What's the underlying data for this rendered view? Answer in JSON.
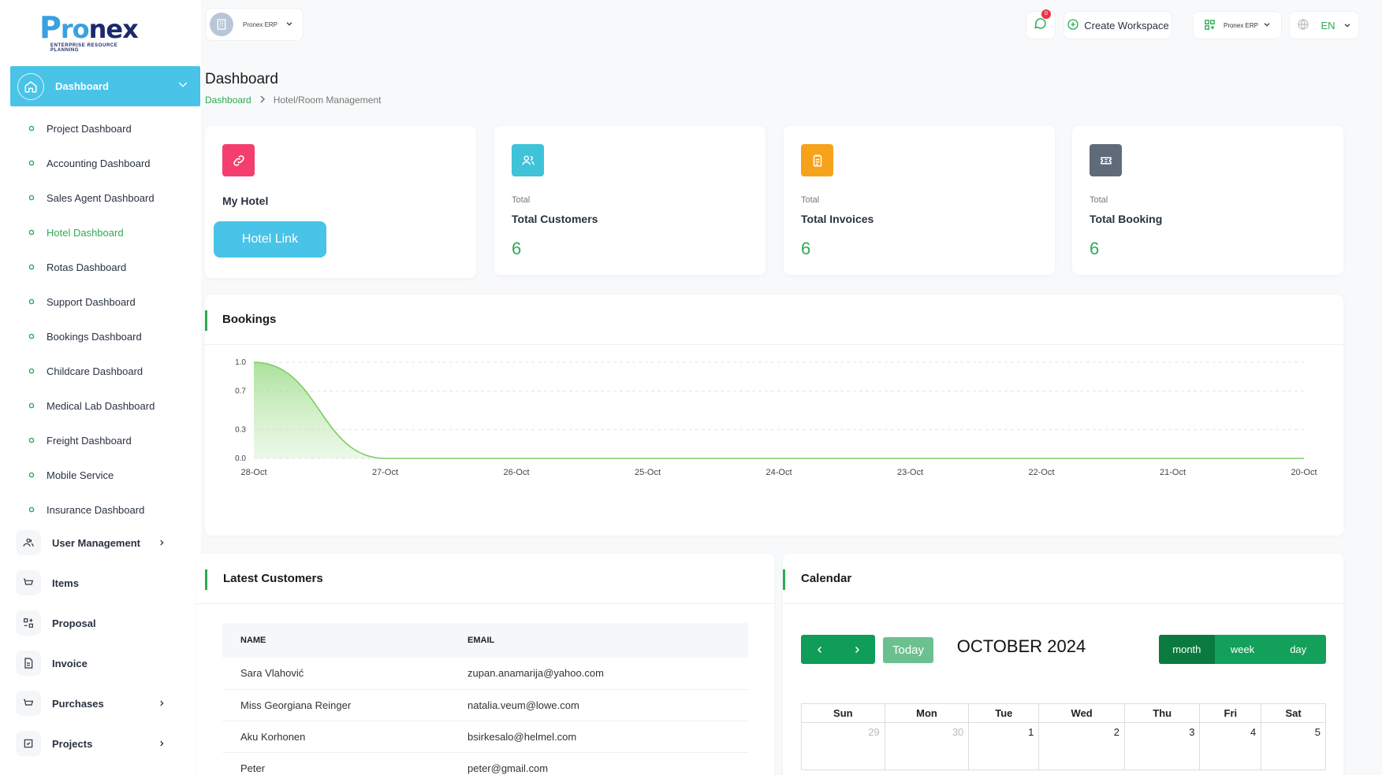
{
  "brand": {
    "logo_text": "Pronex",
    "tagline": "ENTERPRISE RESOURCE PLANNING"
  },
  "header": {
    "workspace_name": "Pronex ERP",
    "notif_count": "0",
    "create_workspace": "Create Workspace",
    "erp_switch": "Pronex ERP",
    "language": "EN"
  },
  "sidebar": {
    "dashboard_label": "Dashboard",
    "sub_items": [
      "Project Dashboard",
      "Accounting Dashboard",
      "Sales Agent Dashboard",
      "Hotel Dashboard",
      "Rotas Dashboard",
      "Support Dashboard",
      "Bookings Dashboard",
      "Childcare Dashboard",
      "Medical Lab Dashboard",
      "Freight Dashboard",
      "Mobile Service",
      "Insurance Dashboard"
    ],
    "active_sub": "Hotel Dashboard",
    "main_items": [
      "User Management",
      "Items",
      "Proposal",
      "Invoice",
      "Purchases",
      "Projects"
    ]
  },
  "page": {
    "title": "Dashboard",
    "breadcrumb_home": "Dashboard",
    "breadcrumb_current": "Hotel/Room Management"
  },
  "cards": {
    "hotel": {
      "title": "My Hotel",
      "button": "Hotel Link"
    },
    "customers": {
      "small": "Total",
      "title": "Total Customers",
      "value": "6"
    },
    "invoices": {
      "small": "Total",
      "title": "Total Invoices",
      "value": "6"
    },
    "booking": {
      "small": "Total",
      "title": "Total Booking",
      "value": "6"
    }
  },
  "colors": {
    "accent": "#49c3e8",
    "green": "#2eaa52",
    "hotel_icon": "#f43f6e",
    "customers_icon": "#3ec3d8",
    "invoices_icon": "#f7a21b",
    "booking_icon": "#5f6b79"
  },
  "bookings": {
    "title": "Bookings"
  },
  "chart_data": {
    "type": "area",
    "x": [
      "28-Oct",
      "27-Oct",
      "26-Oct",
      "25-Oct",
      "24-Oct",
      "23-Oct",
      "22-Oct",
      "21-Oct",
      "20-Oct"
    ],
    "series": [
      {
        "values": [
          1,
          0,
          0,
          0,
          0,
          0,
          0,
          0,
          0
        ]
      }
    ],
    "yticks": [
      "1.0",
      "0.7",
      "0.3",
      "0.0"
    ],
    "ylim": [
      0,
      1
    ],
    "grid": true
  },
  "customers": {
    "title": "Latest Customers",
    "columns": [
      "NAME",
      "EMAIL"
    ],
    "rows": [
      [
        "Sara Vlahović",
        "zupan.anamarija@yahoo.com"
      ],
      [
        "Miss Georgiana Reinger",
        "natalia.veum@lowe.com"
      ],
      [
        "Aku Korhonen",
        "bsirkesalo@helmel.com"
      ],
      [
        "Peter",
        "peter@gmail.com"
      ]
    ]
  },
  "calendar": {
    "title": "Calendar",
    "today": "Today",
    "month_label": "OCTOBER 2024",
    "views": [
      "month",
      "week",
      "day"
    ],
    "days": [
      "Sun",
      "Mon",
      "Tue",
      "Wed",
      "Thu",
      "Fri",
      "Sat"
    ],
    "first_week": [
      "29",
      "30",
      "1",
      "2",
      "3",
      "4",
      "5"
    ]
  }
}
